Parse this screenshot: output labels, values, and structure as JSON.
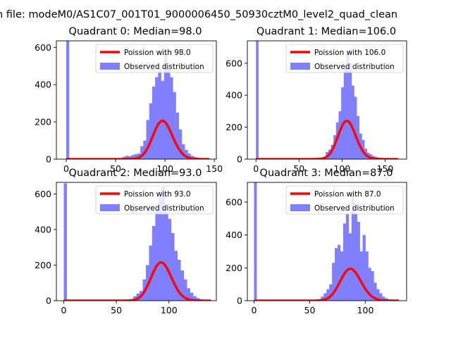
{
  "suptitle": "n file: modeM0/AS1C07_001T01_9000006450_50930cztM0_level2_quad_clean",
  "colors": {
    "poisson": "#ff0000",
    "observed": "#8080ff",
    "legend_border": "#cccccc"
  },
  "chart_data": [
    {
      "type": "histogram+line",
      "title": "Quadrant 0: Median=98.0",
      "xlim": [
        -10,
        152
      ],
      "ylim": [
        0,
        635
      ],
      "xticks": [
        0,
        50,
        100,
        150
      ],
      "yticks": [
        0,
        200,
        400,
        600
      ],
      "legend": {
        "position": "top-right",
        "entries": [
          "Poission with 98.0",
          "Observed distribution"
        ]
      },
      "poisson_mean": 98.0,
      "poisson_range": [
        0,
        145
      ],
      "hist": {
        "bin_width": 3,
        "zero_bin_count": 660,
        "bins": [
          [
            54,
            5
          ],
          [
            57,
            13
          ],
          [
            60,
            18
          ],
          [
            63,
            16
          ],
          [
            66,
            22
          ],
          [
            69,
            27
          ],
          [
            72,
            30
          ],
          [
            75,
            70
          ],
          [
            78,
            100
          ],
          [
            81,
            210
          ],
          [
            84,
            300
          ],
          [
            87,
            390
          ],
          [
            90,
            440
          ],
          [
            93,
            490
          ],
          [
            96,
            420
          ],
          [
            99,
            560
          ],
          [
            102,
            490
          ],
          [
            105,
            440
          ],
          [
            108,
            360
          ],
          [
            111,
            250
          ],
          [
            114,
            160
          ],
          [
            117,
            80
          ],
          [
            120,
            50
          ],
          [
            123,
            30
          ],
          [
            126,
            18
          ],
          [
            129,
            12
          ],
          [
            132,
            8
          ],
          [
            135,
            5
          ],
          [
            138,
            3
          ],
          [
            141,
            2
          ]
        ]
      }
    },
    {
      "type": "histogram+line",
      "title": "Quadrant 1: Median=106.0",
      "xlim": [
        -10,
        175
      ],
      "ylim": [
        0,
        740
      ],
      "xticks": [
        0,
        50,
        100,
        150
      ],
      "yticks": [
        0,
        200,
        400,
        600
      ],
      "legend": {
        "position": "top-right",
        "entries": [
          "Poission with 106.0",
          "Observed distribution"
        ]
      },
      "poisson_mean": 106.0,
      "poisson_range": [
        0,
        165
      ],
      "hist": {
        "bin_width": 3,
        "zero_bin_count": 740,
        "bins": [
          [
            60,
            5
          ],
          [
            66,
            8
          ],
          [
            72,
            10
          ],
          [
            78,
            15
          ],
          [
            81,
            45
          ],
          [
            84,
            60
          ],
          [
            87,
            90
          ],
          [
            90,
            150
          ],
          [
            93,
            230
          ],
          [
            96,
            300
          ],
          [
            99,
            450
          ],
          [
            102,
            570
          ],
          [
            105,
            670
          ],
          [
            108,
            600
          ],
          [
            111,
            460
          ],
          [
            114,
            390
          ],
          [
            117,
            270
          ],
          [
            120,
            160
          ],
          [
            123,
            120
          ],
          [
            126,
            65
          ],
          [
            129,
            40
          ],
          [
            132,
            30
          ],
          [
            135,
            20
          ],
          [
            138,
            15
          ],
          [
            141,
            10
          ],
          [
            144,
            6
          ],
          [
            150,
            4
          ]
        ]
      }
    },
    {
      "type": "histogram+line",
      "title": "Quadrant 2: Median=93.0",
      "xlim": [
        -7,
        145
      ],
      "ylim": [
        0,
        665
      ],
      "xticks": [
        0,
        50,
        100,
        150
      ],
      "yticks": [
        0,
        200,
        400,
        600
      ],
      "legend": {
        "position": "top-right",
        "entries": [
          "Poission with 93.0",
          "Observed distribution"
        ]
      },
      "poisson_mean": 93.0,
      "poisson_range": [
        0,
        140
      ],
      "hist": {
        "bin_width": 3,
        "zero_bin_count": 660,
        "bins": [
          [
            57,
            5
          ],
          [
            63,
            10
          ],
          [
            66,
            25
          ],
          [
            69,
            40
          ],
          [
            72,
            55
          ],
          [
            75,
            120
          ],
          [
            78,
            200
          ],
          [
            81,
            310
          ],
          [
            84,
            420
          ],
          [
            87,
            510
          ],
          [
            90,
            580
          ],
          [
            93,
            640
          ],
          [
            96,
            500
          ],
          [
            99,
            460
          ],
          [
            102,
            380
          ],
          [
            105,
            280
          ],
          [
            108,
            230
          ],
          [
            111,
            170
          ],
          [
            114,
            120
          ],
          [
            117,
            70
          ],
          [
            120,
            45
          ],
          [
            123,
            25
          ],
          [
            126,
            15
          ],
          [
            129,
            8
          ],
          [
            132,
            5
          ]
        ]
      }
    },
    {
      "type": "histogram+line",
      "title": "Quadrant 3: Median=87.0",
      "xlim": [
        -6,
        137
      ],
      "ylim": [
        0,
        720
      ],
      "xticks": [
        0,
        50,
        100
      ],
      "yticks": [
        0,
        200,
        400,
        600
      ],
      "legend": {
        "position": "top-right",
        "entries": [
          "Poission with 87.0",
          "Observed distribution"
        ]
      },
      "poisson_mean": 87.0,
      "poisson_range": [
        0,
        130
      ],
      "hist": {
        "bin_width": 2.5,
        "zero_bin_count": 720,
        "bins": [
          [
            57.5,
            10
          ],
          [
            60,
            25
          ],
          [
            62.5,
            45
          ],
          [
            65,
            70
          ],
          [
            67.5,
            100
          ],
          [
            70,
            230
          ],
          [
            72.5,
            320
          ],
          [
            75,
            340
          ],
          [
            77.5,
            300
          ],
          [
            80,
            470
          ],
          [
            82.5,
            530
          ],
          [
            85,
            410
          ],
          [
            87.5,
            650
          ],
          [
            90,
            530
          ],
          [
            92.5,
            480
          ],
          [
            95,
            300
          ],
          [
            97.5,
            400
          ],
          [
            100,
            300
          ],
          [
            102.5,
            200
          ],
          [
            105,
            180
          ],
          [
            107.5,
            110
          ],
          [
            110,
            70
          ],
          [
            112.5,
            45
          ],
          [
            115,
            25
          ],
          [
            117.5,
            15
          ],
          [
            120,
            8
          ]
        ]
      }
    }
  ]
}
